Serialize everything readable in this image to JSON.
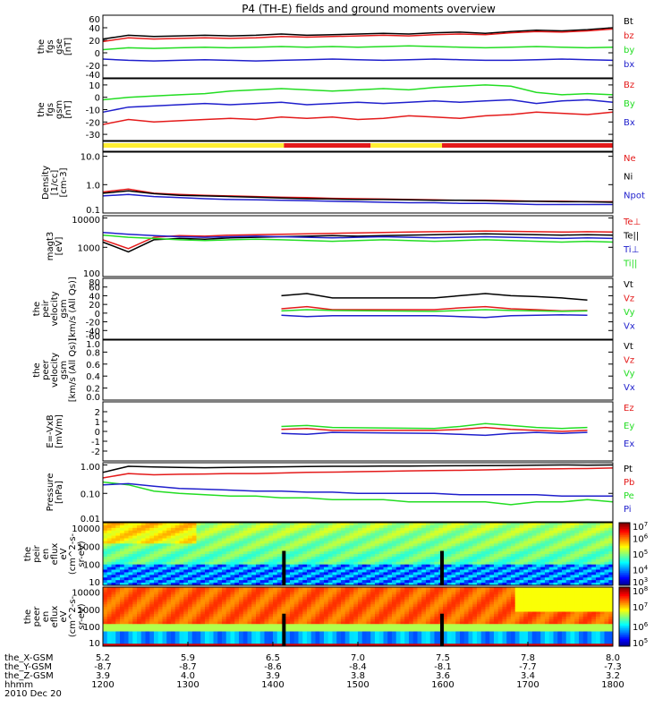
{
  "chart_data": {
    "type": "line",
    "title": "P4 (TH-E) fields and ground moments overview",
    "date": "2010 Dec 20",
    "x": {
      "label": "hhmm",
      "ticks": [
        "1200",
        "1300",
        "1400",
        "1500",
        "1600",
        "1700",
        "1800"
      ],
      "range": [
        "12:00",
        "18:00"
      ],
      "rows": [
        {
          "label": "the_X-GSM",
          "values": [
            "5.2",
            "5.9",
            "6.5",
            "7.0",
            "7.5",
            "7.8",
            "8.0"
          ]
        },
        {
          "label": "the_Y-GSM",
          "values": [
            "-8.7",
            "-8.7",
            "-8.6",
            "-8.4",
            "-8.1",
            "-7.7",
            "-7.3"
          ]
        },
        {
          "label": "the_Z-GSM",
          "values": [
            "3.9",
            "4.0",
            "3.9",
            "3.8",
            "3.6",
            "3.4",
            "3.2"
          ]
        }
      ]
    },
    "colors": {
      "black": "#000000",
      "red": "#e41a1a",
      "green": "#22dd22",
      "blue": "#1f1fcc",
      "yellow": "#ffee33"
    },
    "panels": [
      {
        "id": "fgs-gse",
        "ylabel": [
          "the",
          "fgs",
          "gse",
          "[nT]"
        ],
        "scale": "linear",
        "ylim": [
          -40,
          60
        ],
        "ticks": [
          "60",
          "40",
          "20",
          "0",
          "-20",
          "-40"
        ],
        "series": [
          {
            "name": "Bt",
            "color": "black",
            "values": [
              22,
              28,
              26,
              27,
              28,
              27,
              28,
              30,
              28,
              29,
              30,
              31,
              30,
              32,
              33,
              31,
              34,
              36,
              35,
              37,
              40
            ]
          },
          {
            "name": "bz",
            "color": "red",
            "values": [
              18,
              24,
              22,
              23,
              24,
              23,
              24,
              26,
              25,
              26,
              27,
              28,
              27,
              29,
              30,
              29,
              32,
              34,
              33,
              35,
              38
            ]
          },
          {
            "name": "by",
            "color": "green",
            "values": [
              5,
              8,
              7,
              8,
              9,
              8,
              9,
              10,
              9,
              10,
              9,
              10,
              11,
              10,
              9,
              8,
              9,
              10,
              9,
              8,
              9
            ]
          },
          {
            "name": "bx",
            "color": "blue",
            "values": [
              -10,
              -12,
              -13,
              -12,
              -11,
              -12,
              -13,
              -12,
              -11,
              -10,
              -11,
              -12,
              -11,
              -10,
              -11,
              -12,
              -12,
              -11,
              -10,
              -11,
              -12
            ]
          }
        ]
      },
      {
        "id": "fgs-gsm",
        "ylabel": [
          "the",
          "fgs",
          "gsm",
          "[nT]"
        ],
        "scale": "linear",
        "ylim": [
          -35,
          15
        ],
        "ticks": [
          "10",
          "0",
          "-10",
          "-20",
          "-30"
        ],
        "series": [
          {
            "name": "Bz",
            "color": "red",
            "values": [
              -22,
              -18,
              -20,
              -19,
              -18,
              -17,
              -18,
              -16,
              -17,
              -16,
              -18,
              -17,
              -15,
              -16,
              -17,
              -15,
              -14,
              -12,
              -13,
              -14,
              -12
            ]
          },
          {
            "name": "By",
            "color": "green",
            "values": [
              -2,
              0,
              1,
              2,
              3,
              5,
              6,
              7,
              6,
              5,
              6,
              7,
              6,
              8,
              9,
              10,
              9,
              4,
              2,
              3,
              2
            ]
          },
          {
            "name": "Bx",
            "color": "blue",
            "values": [
              -12,
              -8,
              -7,
              -6,
              -5,
              -6,
              -5,
              -4,
              -6,
              -5,
              -4,
              -5,
              -4,
              -3,
              -4,
              -3,
              -2,
              -5,
              -3,
              -2,
              -4
            ]
          }
        ]
      },
      {
        "id": "mode-bar",
        "kind": "bar",
        "segments": [
          {
            "from": 0,
            "to": 0.355,
            "color": "yellow"
          },
          {
            "from": 0.355,
            "to": 0.525,
            "color": "red"
          },
          {
            "from": 0.525,
            "to": 0.665,
            "color": "yellow"
          },
          {
            "from": 0.665,
            "to": 1,
            "color": "red"
          }
        ]
      },
      {
        "id": "density",
        "ylabel": [
          "Density",
          "[1/cc]",
          "[cm-3]"
        ],
        "scale": "log",
        "ylim": [
          0.1,
          14
        ],
        "ticks": [
          "10.0",
          "1.0",
          "0.1"
        ],
        "series": [
          {
            "name": "Ne",
            "color": "red",
            "values": [
              0.55,
              0.7,
              0.5,
              0.45,
              0.42,
              0.4,
              0.38,
              0.36,
              0.35,
              0.33,
              0.32,
              0.31,
              0.3,
              0.29,
              0.28,
              0.28,
              0.27,
              0.26,
              0.26,
              0.25,
              0.25
            ]
          },
          {
            "name": "Ni",
            "color": "black",
            "values": [
              0.5,
              0.6,
              0.48,
              0.42,
              0.4,
              0.38,
              0.36,
              0.34,
              0.32,
              0.31,
              0.3,
              0.3,
              0.29,
              0.28,
              0.28,
              0.27,
              0.26,
              0.26,
              0.25,
              0.25,
              0.24
            ]
          },
          {
            "name": "Npot",
            "color": "blue",
            "values": [
              0.4,
              0.45,
              0.38,
              0.35,
              0.32,
              0.3,
              0.29,
              0.28,
              0.27,
              0.26,
              0.25,
              0.24,
              0.23,
              0.23,
              0.22,
              0.22,
              0.21,
              0.2,
              0.2,
              0.2,
              0.2
            ]
          }
        ]
      },
      {
        "id": "temperature",
        "ylabel": [
          "magt3",
          "[eV]"
        ],
        "scale": "log",
        "ylim": [
          100,
          12000
        ],
        "ticks": [
          "10000",
          "1000",
          "100"
        ],
        "series": [
          {
            "name": "Te⊥",
            "color": "red",
            "values": [
              1800,
              900,
              2200,
              2500,
              2400,
              2600,
              2700,
              2800,
              2900,
              3000,
              3100,
              3200,
              3300,
              3400,
              3500,
              3600,
              3500,
              3400,
              3300,
              3400,
              3300
            ]
          },
          {
            "name": "Te||",
            "color": "black",
            "values": [
              1500,
              700,
              1800,
              2000,
              1900,
              2100,
              2200,
              2300,
              2400,
              2500,
              2400,
              2500,
              2600,
              2700,
              2800,
              2900,
              2800,
              2700,
              2600,
              2700,
              2600
            ]
          },
          {
            "name": "Ti⊥",
            "color": "blue",
            "values": [
              3200,
              2800,
              2500,
              2300,
              2200,
              2300,
              2400,
              2300,
              2200,
              2100,
              2200,
              2300,
              2200,
              2100,
              2200,
              2300,
              2200,
              2100,
              2000,
              2100,
              2000
            ]
          },
          {
            "name": "Ti||",
            "color": "green",
            "values": [
              2600,
              2200,
              2000,
              1800,
              1700,
              1800,
              1900,
              1800,
              1700,
              1600,
              1700,
              1800,
              1700,
              1600,
              1700,
              1800,
              1700,
              1600,
              1500,
              1600,
              1500
            ]
          }
        ]
      },
      {
        "id": "peir-velocity",
        "ylabel": [
          "the",
          "peir",
          "velocity",
          "gsm",
          "[km/s (All Qs)]"
        ],
        "scale": "linear",
        "ylim": [
          -60,
          80
        ],
        "ticks": [
          "80",
          "60",
          "40",
          "20",
          "0",
          "-20",
          "-40",
          "-60"
        ],
        "series": [
          {
            "name": "Vt",
            "color": "black",
            "values": [
              null,
              null,
              null,
              null,
              null,
              null,
              null,
              40,
              45,
              35,
              null,
              null,
              null,
              35,
              40,
              45,
              40,
              38,
              35,
              30,
              null
            ]
          },
          {
            "name": "Vz",
            "color": "red",
            "values": [
              null,
              null,
              null,
              null,
              null,
              null,
              null,
              10,
              15,
              8,
              null,
              null,
              null,
              8,
              12,
              15,
              10,
              8,
              5,
              6,
              null
            ]
          },
          {
            "name": "Vy",
            "color": "green",
            "values": [
              null,
              null,
              null,
              null,
              null,
              null,
              null,
              5,
              8,
              6,
              null,
              null,
              null,
              4,
              6,
              8,
              6,
              5,
              4,
              5,
              null
            ]
          },
          {
            "name": "Vx",
            "color": "blue",
            "values": [
              null,
              null,
              null,
              null,
              null,
              null,
              null,
              -5,
              -8,
              -6,
              null,
              null,
              null,
              -6,
              -8,
              -10,
              -6,
              -5,
              -4,
              -5,
              null
            ]
          }
        ]
      },
      {
        "id": "peer-velocity",
        "ylabel": [
          "the",
          "peer",
          "velocity",
          "gsm",
          "[km/s (All Qs)]"
        ],
        "scale": "linear",
        "ylim": [
          0,
          1
        ],
        "ticks": [
          "1.0",
          "0.8",
          "0.6",
          "0.4",
          "0.2",
          "0.0"
        ],
        "series": [
          {
            "name": "Vt",
            "color": "black",
            "values": []
          },
          {
            "name": "Vz",
            "color": "red",
            "values": []
          },
          {
            "name": "Vy",
            "color": "green",
            "values": []
          },
          {
            "name": "Vx",
            "color": "blue",
            "values": []
          }
        ]
      },
      {
        "id": "efield",
        "ylabel": [
          "E=-VxB",
          "[mV/m]"
        ],
        "scale": "linear",
        "ylim": [
          -3,
          3
        ],
        "ticks": [
          "2",
          "1",
          "0",
          "-1",
          "-2"
        ],
        "series": [
          {
            "name": "Ez",
            "color": "red",
            "values": [
              null,
              null,
              null,
              null,
              null,
              null,
              null,
              0.2,
              0.3,
              0.1,
              null,
              null,
              null,
              0.1,
              0.2,
              0.4,
              0.2,
              0.1,
              0.0,
              0.1,
              null
            ]
          },
          {
            "name": "Ey",
            "color": "green",
            "values": [
              null,
              null,
              null,
              null,
              null,
              null,
              null,
              0.5,
              0.6,
              0.4,
              null,
              null,
              null,
              0.3,
              0.5,
              0.8,
              0.6,
              0.4,
              0.3,
              0.4,
              null
            ]
          },
          {
            "name": "Ex",
            "color": "blue",
            "values": [
              null,
              null,
              null,
              null,
              null,
              null,
              null,
              -0.2,
              -0.3,
              -0.1,
              null,
              null,
              null,
              -0.2,
              -0.3,
              -0.4,
              -0.2,
              -0.1,
              -0.2,
              -0.1,
              null
            ]
          }
        ]
      },
      {
        "id": "pressure",
        "ylabel": [
          "Pressure",
          "[nPa]"
        ],
        "scale": "log",
        "ylim": [
          0.01,
          1.2
        ],
        "ticks": [
          "1.00",
          "0.10",
          "0.01"
        ],
        "series": [
          {
            "name": "Pt",
            "color": "black",
            "values": [
              0.55,
              0.9,
              0.85,
              0.82,
              0.8,
              0.82,
              0.84,
              0.86,
              0.88,
              0.9,
              0.9,
              0.92,
              0.92,
              0.93,
              0.94,
              0.95,
              0.96,
              0.98,
              1.0,
              0.99,
              1.0
            ]
          },
          {
            "name": "Pb",
            "color": "red",
            "values": [
              0.35,
              0.5,
              0.45,
              0.47,
              0.48,
              0.5,
              0.5,
              0.52,
              0.55,
              0.56,
              0.58,
              0.6,
              0.62,
              0.64,
              0.65,
              0.67,
              0.7,
              0.72,
              0.74,
              0.75,
              0.78
            ]
          },
          {
            "name": "Pe",
            "color": "green",
            "values": [
              0.25,
              0.2,
              0.12,
              0.1,
              0.09,
              0.08,
              0.08,
              0.07,
              0.07,
              0.06,
              0.06,
              0.06,
              0.05,
              0.05,
              0.05,
              0.05,
              0.04,
              0.05,
              0.05,
              0.06,
              0.05
            ]
          },
          {
            "name": "Pi",
            "color": "blue",
            "values": [
              0.2,
              0.22,
              0.18,
              0.15,
              0.14,
              0.13,
              0.12,
              0.12,
              0.11,
              0.11,
              0.1,
              0.1,
              0.1,
              0.1,
              0.09,
              0.09,
              0.09,
              0.09,
              0.08,
              0.08,
              0.08
            ]
          }
        ]
      },
      {
        "id": "peir-spectrogram",
        "kind": "heatmap",
        "ylabel": [
          "the",
          "peir",
          "en",
          "eflux",
          "eV",
          "(cm^2-s-",
          "sr-eV)"
        ],
        "scale": "log",
        "ylim": [
          7,
          20000
        ],
        "ticks": [
          "10000",
          "1000",
          "100",
          "10"
        ],
        "colorbar": {
          "min_exp": 3,
          "max_exp": 7,
          "ticks": [
            "10^7",
            "10^6",
            "10^5",
            "10^4",
            "10^3"
          ]
        }
      },
      {
        "id": "peer-spectrogram",
        "kind": "heatmap",
        "ylabel": [
          "the",
          "peer",
          "en",
          "eflux",
          "eV",
          "(cm^2-s-",
          "sr-eV)"
        ],
        "scale": "log",
        "ylim": [
          7,
          20000
        ],
        "ticks": [
          "10000",
          "1000",
          "100",
          "10"
        ],
        "colorbar": {
          "min_exp": 5,
          "max_exp": 8,
          "ticks": [
            "10^8",
            "10^7",
            "10^6",
            "10^5"
          ]
        }
      }
    ]
  }
}
